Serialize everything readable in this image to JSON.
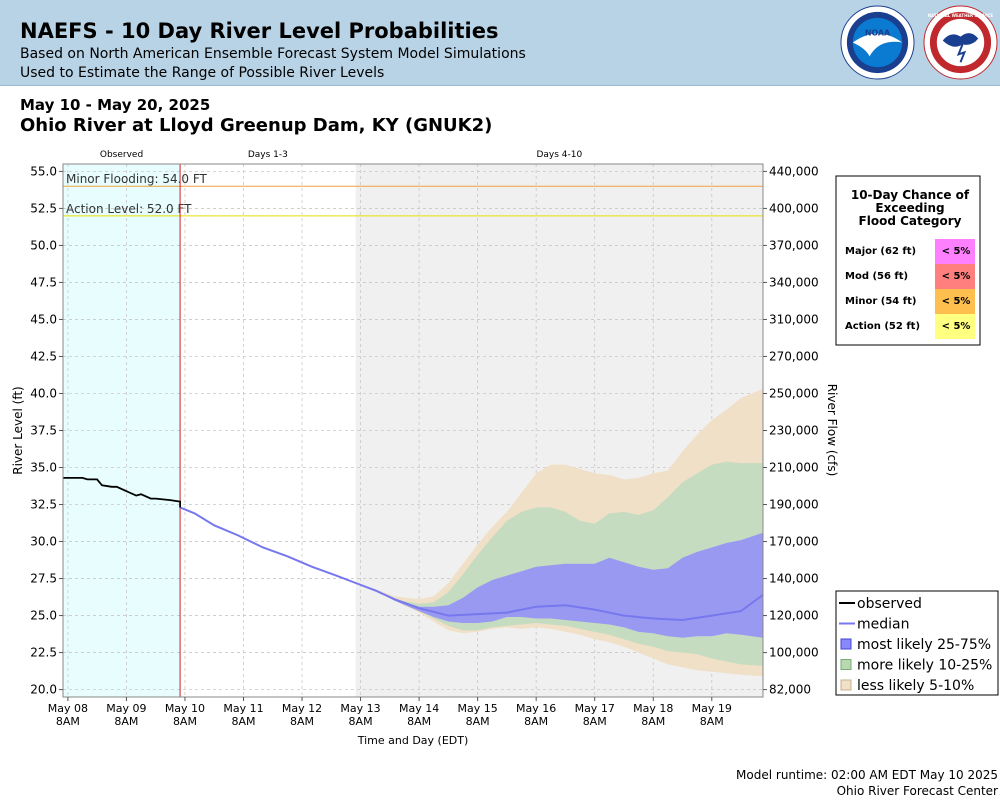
{
  "header": {
    "title": "NAEFS - 10 Day River Level Probabilities",
    "subtitle1": "Based on North American Ensemble Forecast System Model Simulations",
    "subtitle2": "Used to Estimate the Range of Possible River Levels",
    "noaa_logo_text": "NOAA",
    "nws_logo_text": "NATIONAL WEATHER SERVICE"
  },
  "date_range": "May 10 - May 20, 2025",
  "location": "Ohio River at Lloyd Greenup Dam, KY (GNUK2)",
  "footer": {
    "runtime": "Model runtime: 02:00 AM EDT May 10 2025",
    "center": "Ohio River Forecast Center"
  },
  "flood_table": {
    "title_lines": [
      "10-Day Chance of",
      "Exceeding",
      "Flood Category"
    ],
    "rows": [
      {
        "label": "Major (62 ft)",
        "value": "< 5%",
        "color": "#ff80ff"
      },
      {
        "label": "Mod (56 ft)",
        "value": "< 5%",
        "color": "#ff7f7f"
      },
      {
        "label": "Minor (54 ft)",
        "value": "< 5%",
        "color": "#ffbf4f"
      },
      {
        "label": "Action (52 ft)",
        "value": "< 5%",
        "color": "#ffff80"
      }
    ]
  },
  "chart_data": {
    "type": "area",
    "xlabel": "Time and Day (EDT)",
    "ylabel": "River Level (ft)",
    "ylabel_right": "River Flow (cfs)",
    "ylim": [
      19.5,
      55.5
    ],
    "xlim_hours": [
      -2,
      285
    ],
    "x_axis_start": "May 08 8AM",
    "y_ticks": [
      "20.0",
      "22.5",
      "25.0",
      "27.5",
      "30.0",
      "32.5",
      "35.0",
      "37.5",
      "40.0",
      "42.5",
      "45.0",
      "47.5",
      "50.0",
      "52.5",
      "55.0"
    ],
    "y_tick_values": [
      20,
      22.5,
      25,
      27.5,
      30,
      32.5,
      35,
      37.5,
      40,
      42.5,
      45,
      47.5,
      50,
      52.5,
      55
    ],
    "right_ticks": [
      {
        "stage": 20.0,
        "label": "82,000"
      },
      {
        "stage": 22.5,
        "label": "100,000"
      },
      {
        "stage": 25.0,
        "label": "120,000"
      },
      {
        "stage": 27.5,
        "label": "140,000"
      },
      {
        "stage": 30.0,
        "label": "170,000"
      },
      {
        "stage": 32.5,
        "label": "190,000"
      },
      {
        "stage": 35.0,
        "label": "210,000"
      },
      {
        "stage": 37.5,
        "label": "230,000"
      },
      {
        "stage": 40.0,
        "label": "250,000"
      },
      {
        "stage": 42.5,
        "label": "270,000"
      },
      {
        "stage": 45.0,
        "label": "310,000"
      },
      {
        "stage": 47.5,
        "label": "340,000"
      },
      {
        "stage": 50.0,
        "label": "370,000"
      },
      {
        "stage": 52.5,
        "label": "400,000"
      },
      {
        "stage": 55.0,
        "label": "440,000"
      }
    ],
    "x_ticks": [
      {
        "hour": 0,
        "day": "May 08",
        "time": "8AM"
      },
      {
        "hour": 24,
        "day": "May 09",
        "time": "8AM"
      },
      {
        "hour": 48,
        "day": "May 10",
        "time": "8AM"
      },
      {
        "hour": 72,
        "day": "May 11",
        "time": "8AM"
      },
      {
        "hour": 96,
        "day": "May 12",
        "time": "8AM"
      },
      {
        "hour": 120,
        "day": "May 13",
        "time": "8AM"
      },
      {
        "hour": 144,
        "day": "May 14",
        "time": "8AM"
      },
      {
        "hour": 168,
        "day": "May 15",
        "time": "8AM"
      },
      {
        "hour": 192,
        "day": "May 16",
        "time": "8AM"
      },
      {
        "hour": 216,
        "day": "May 17",
        "time": "8AM"
      },
      {
        "hour": 240,
        "day": "May 18",
        "time": "8AM"
      },
      {
        "hour": 264,
        "day": "May 19",
        "time": "8AM"
      }
    ],
    "regions": [
      {
        "label": "Observed",
        "start": -2,
        "end": 46,
        "color": "#e8fdfd"
      },
      {
        "label": "Days 1-3",
        "start": 46,
        "end": 118,
        "color": "#ffffff"
      },
      {
        "label": "Days 4-10",
        "start": 118,
        "end": 285,
        "color": "#f0f0f0"
      }
    ],
    "forecast_start_hour": 46,
    "thresholds": [
      {
        "label": "Minor Flooding: 54.0 FT",
        "value": 54.0,
        "color": "#f0a040"
      },
      {
        "label": "Action Level: 52.0 FT",
        "value": 52.0,
        "color": "#e8e000"
      }
    ],
    "observed": {
      "name": "observed",
      "x": [
        -2,
        6,
        8,
        12,
        14,
        18,
        20,
        28,
        30,
        34,
        36,
        42,
        46,
        46
      ],
      "y": [
        34.3,
        34.3,
        34.2,
        34.2,
        33.8,
        33.7,
        33.7,
        33.1,
        33.2,
        32.9,
        32.9,
        32.8,
        32.7,
        32.3
      ]
    },
    "median": {
      "name": "median",
      "x": [
        46,
        52,
        60,
        70,
        80,
        90,
        100,
        110,
        118,
        126,
        134,
        144,
        156,
        168,
        180,
        192,
        204,
        216,
        228,
        240,
        252,
        264,
        276,
        285
      ],
      "y": [
        32.3,
        31.9,
        31.1,
        30.4,
        29.6,
        29.0,
        28.3,
        27.7,
        27.2,
        26.7,
        26.1,
        25.5,
        25.0,
        25.1,
        25.2,
        25.6,
        25.7,
        25.4,
        25.0,
        24.8,
        24.7,
        25.0,
        25.3,
        26.4
      ]
    },
    "bands": [
      {
        "name": "less likely 5-10%",
        "color": "#f0e0c8",
        "x": [
          118,
          126,
          134,
          144,
          150,
          156,
          162,
          168,
          174,
          180,
          186,
          192,
          198,
          204,
          210,
          216,
          222,
          228,
          234,
          240,
          246,
          252,
          258,
          264,
          270,
          276,
          285
        ],
        "upper": [
          27.2,
          26.8,
          26.3,
          26.1,
          26.3,
          27.2,
          28.5,
          29.8,
          31.0,
          32.0,
          33.3,
          34.6,
          35.2,
          35.2,
          34.9,
          34.6,
          34.5,
          34.2,
          34.3,
          34.6,
          34.8,
          36.1,
          37.2,
          38.2,
          38.9,
          39.7,
          40.3
        ],
        "lower": [
          27.2,
          26.7,
          26.0,
          25.2,
          24.6,
          24.0,
          23.8,
          23.9,
          24.1,
          24.2,
          24.1,
          24.2,
          24.1,
          23.9,
          23.7,
          23.4,
          23.2,
          22.9,
          22.5,
          22.1,
          21.7,
          21.5,
          21.3,
          21.2,
          21.1,
          21.0,
          20.9
        ]
      },
      {
        "name": "more likely 10-25%",
        "color": "#c6dcc0",
        "x": [
          118,
          126,
          134,
          144,
          150,
          156,
          162,
          168,
          174,
          180,
          186,
          192,
          198,
          204,
          210,
          216,
          222,
          228,
          234,
          240,
          246,
          252,
          258,
          264,
          270,
          276,
          285
        ],
        "upper": [
          27.2,
          26.7,
          26.1,
          25.8,
          25.9,
          26.6,
          27.8,
          29.1,
          30.3,
          31.4,
          32.0,
          32.3,
          32.3,
          32.0,
          31.4,
          31.2,
          31.9,
          32.0,
          31.8,
          32.1,
          33.0,
          34.0,
          34.6,
          35.2,
          35.4,
          35.3,
          35.3
        ],
        "lower": [
          27.2,
          26.7,
          26.0,
          25.3,
          24.8,
          24.3,
          24.0,
          24.0,
          24.2,
          24.3,
          24.4,
          24.5,
          24.4,
          24.3,
          24.1,
          23.9,
          23.7,
          23.4,
          23.1,
          22.9,
          22.6,
          22.5,
          22.4,
          22.1,
          21.9,
          21.7,
          21.6
        ]
      },
      {
        "name": "most likely 25-75%",
        "color": "#9999f2",
        "x": [
          118,
          126,
          134,
          144,
          150,
          156,
          162,
          168,
          174,
          180,
          186,
          192,
          198,
          204,
          210,
          216,
          222,
          228,
          234,
          240,
          246,
          252,
          258,
          264,
          270,
          276,
          285
        ],
        "upper": [
          27.2,
          26.7,
          26.1,
          25.6,
          25.6,
          25.7,
          26.2,
          26.9,
          27.4,
          27.7,
          28.0,
          28.3,
          28.4,
          28.5,
          28.5,
          28.5,
          28.9,
          28.6,
          28.3,
          28.1,
          28.2,
          28.9,
          29.3,
          29.6,
          29.9,
          30.1,
          30.6
        ],
        "lower": [
          27.2,
          26.7,
          26.0,
          25.3,
          24.9,
          24.6,
          24.5,
          24.5,
          24.6,
          24.9,
          24.9,
          24.8,
          24.8,
          24.7,
          24.6,
          24.5,
          24.4,
          24.2,
          23.9,
          23.8,
          23.6,
          23.5,
          23.6,
          23.6,
          23.8,
          23.7,
          23.5
        ]
      }
    ],
    "legend": [
      {
        "label": "observed",
        "kind": "line",
        "color": "#000000"
      },
      {
        "label": "median",
        "kind": "line",
        "color": "#7777ee"
      },
      {
        "label": "most likely 25-75%",
        "kind": "box",
        "color": "#8888ff",
        "border": "#4444cc"
      },
      {
        "label": "more likely 10-25%",
        "kind": "box",
        "color": "#b8d8b0",
        "border": "#77aa77"
      },
      {
        "label": "less likely 5-10%",
        "kind": "box",
        "color": "#f0e0c8",
        "border": "#c8b090"
      }
    ]
  }
}
